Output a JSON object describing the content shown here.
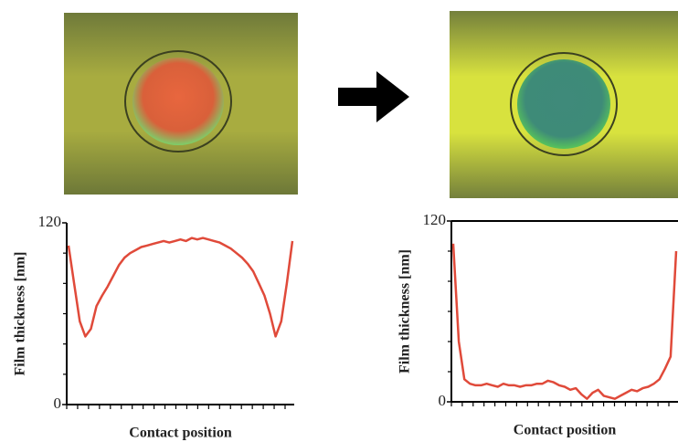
{
  "chart_data": [
    {
      "type": "line",
      "y_label": "Film thickness [nm]",
      "x_label": "Contact position",
      "color": "#e04a3a",
      "ylim": [
        0,
        120
      ],
      "yticks": [
        0,
        120
      ],
      "yminorticks": [
        20,
        40,
        60,
        80,
        100
      ],
      "values": [
        105,
        80,
        55,
        45,
        50,
        65,
        72,
        78,
        85,
        92,
        97,
        100,
        102,
        104,
        105,
        106,
        107,
        108,
        107,
        108,
        109,
        108,
        110,
        109,
        110,
        109,
        108,
        107,
        105,
        103,
        100,
        97,
        93,
        88,
        80,
        72,
        60,
        45,
        55,
        80,
        108
      ]
    },
    {
      "type": "line",
      "y_label": "Film thickness [nm]",
      "x_label": "Contact position",
      "color": "#e04a3a",
      "ylim": [
        0,
        120
      ],
      "yticks": [
        0,
        120
      ],
      "yminorticks": [
        20,
        40,
        60,
        80,
        100
      ],
      "values": [
        105,
        40,
        15,
        12,
        11,
        11,
        12,
        11,
        10,
        12,
        11,
        11,
        10,
        11,
        11,
        12,
        12,
        14,
        13,
        11,
        10,
        8,
        9,
        5,
        2,
        6,
        8,
        4,
        3,
        2,
        4,
        6,
        8,
        7,
        9,
        10,
        12,
        15,
        22,
        30,
        100
      ]
    }
  ]
}
